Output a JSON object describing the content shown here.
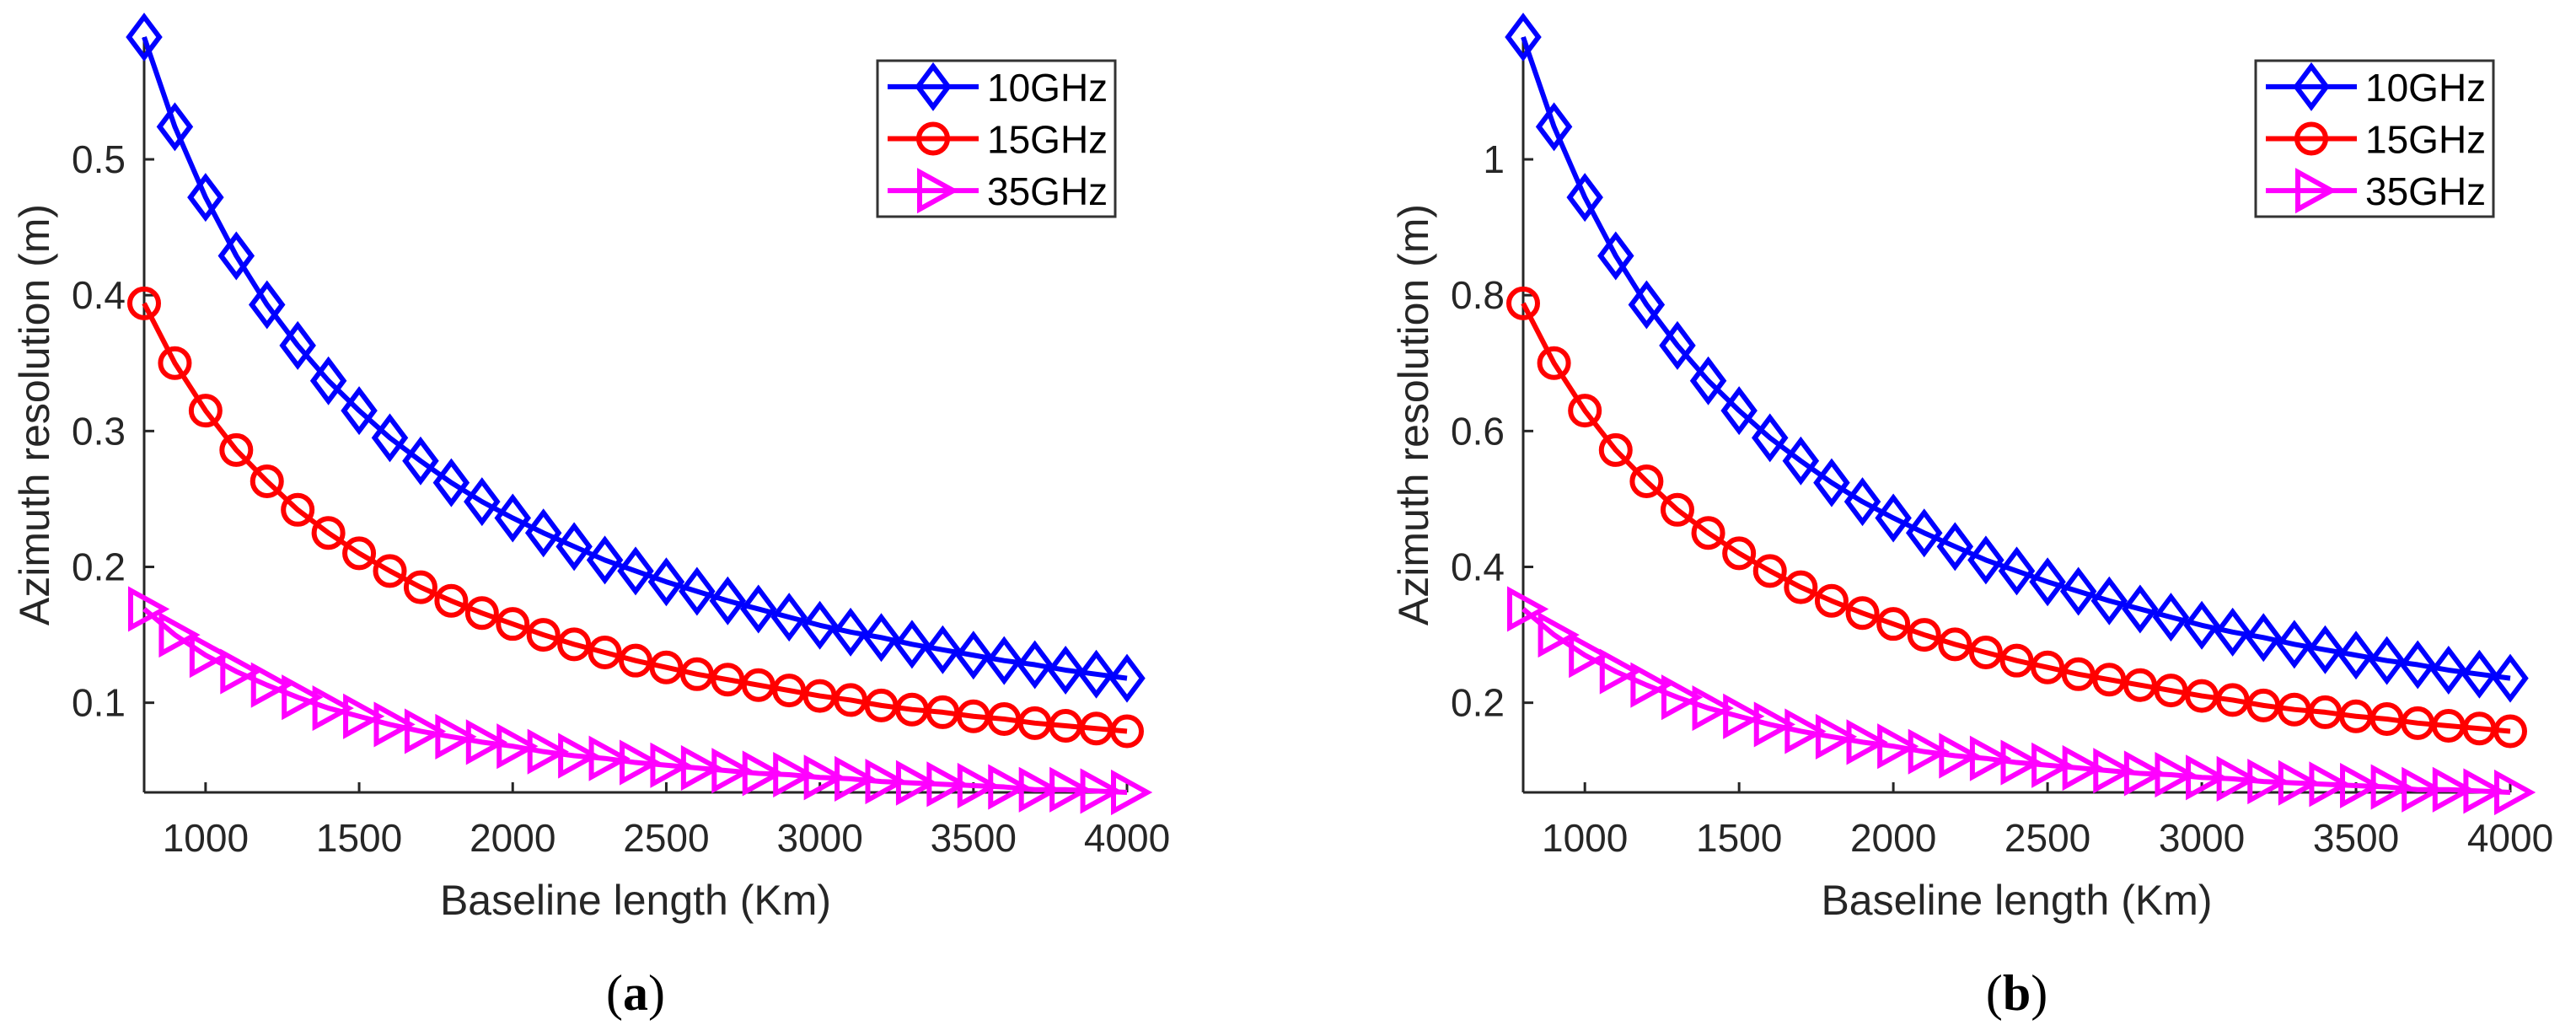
{
  "chart_data": [
    {
      "type": "line",
      "panel": "a",
      "caption_open": "(",
      "caption_letter": "a",
      "caption_close": ")",
      "xlabel": "Baseline length (Km)",
      "ylabel": "Azimuth resolution (m)",
      "xlim": [
        800,
        4000
      ],
      "ylim": [
        0.034,
        0.59
      ],
      "xticks": [
        1000,
        1500,
        2000,
        2500,
        3000,
        3500,
        4000
      ],
      "yticks": [
        0.1,
        0.2,
        0.3,
        0.4,
        0.5
      ],
      "ytick_labels": [
        "0.1",
        "0.2",
        "0.3",
        "0.4",
        "0.5"
      ],
      "grid": false,
      "legend_position": "top-right",
      "x": [
        800,
        900,
        1000,
        1100,
        1200,
        1300,
        1400,
        1500,
        1600,
        1700,
        1800,
        1900,
        2000,
        2100,
        2200,
        2300,
        2400,
        2500,
        2600,
        2700,
        2800,
        2900,
        3000,
        3100,
        3200,
        3300,
        3400,
        3500,
        3600,
        3700,
        3800,
        3900,
        4000
      ],
      "series": [
        {
          "name": "10GHz",
          "color": "#0000ff",
          "marker": "diamond",
          "values": [
            0.59,
            0.524,
            0.472,
            0.429,
            0.393,
            0.363,
            0.337,
            0.315,
            0.295,
            0.278,
            0.262,
            0.248,
            0.236,
            0.225,
            0.215,
            0.205,
            0.197,
            0.189,
            0.182,
            0.175,
            0.169,
            0.163,
            0.157,
            0.152,
            0.148,
            0.143,
            0.139,
            0.135,
            0.131,
            0.128,
            0.124,
            0.121,
            0.118
          ]
        },
        {
          "name": "15GHz",
          "color": "#ff0000",
          "marker": "circle",
          "values": [
            0.394,
            0.35,
            0.315,
            0.286,
            0.263,
            0.242,
            0.225,
            0.21,
            0.197,
            0.185,
            0.175,
            0.166,
            0.158,
            0.15,
            0.143,
            0.137,
            0.131,
            0.126,
            0.121,
            0.117,
            0.113,
            0.109,
            0.105,
            0.102,
            0.098,
            0.095,
            0.093,
            0.09,
            0.088,
            0.085,
            0.083,
            0.081,
            0.079
          ]
        },
        {
          "name": "35GHz",
          "color": "#ff00ff",
          "marker": "triangle-right",
          "values": [
            0.169,
            0.15,
            0.135,
            0.123,
            0.113,
            0.104,
            0.096,
            0.09,
            0.084,
            0.079,
            0.075,
            0.071,
            0.068,
            0.064,
            0.061,
            0.059,
            0.056,
            0.054,
            0.052,
            0.05,
            0.048,
            0.047,
            0.045,
            0.044,
            0.042,
            0.041,
            0.04,
            0.039,
            0.038,
            0.036,
            0.036,
            0.035,
            0.034
          ]
        }
      ]
    },
    {
      "type": "line",
      "panel": "b",
      "caption_open": "(",
      "caption_letter": "b",
      "caption_close": ")",
      "xlabel": "Baseline length (Km)",
      "ylabel": "Azimuth resolution (m)",
      "xlim": [
        800,
        4000
      ],
      "ylim": [
        0.068,
        1.18
      ],
      "xticks": [
        1000,
        1500,
        2000,
        2500,
        3000,
        3500,
        4000
      ],
      "yticks": [
        0.2,
        0.4,
        0.6,
        0.8,
        1.0
      ],
      "ytick_labels": [
        "0.2",
        "0.4",
        "0.6",
        "0.8",
        "1"
      ],
      "grid": false,
      "legend_position": "top-right",
      "x": [
        800,
        900,
        1000,
        1100,
        1200,
        1300,
        1400,
        1500,
        1600,
        1700,
        1800,
        1900,
        2000,
        2100,
        2200,
        2300,
        2400,
        2500,
        2600,
        2700,
        2800,
        2900,
        3000,
        3100,
        3200,
        3300,
        3400,
        3500,
        3600,
        3700,
        3800,
        3900,
        4000
      ],
      "series": [
        {
          "name": "10GHz",
          "color": "#0000ff",
          "marker": "diamond",
          "values": [
            1.18,
            1.048,
            0.944,
            0.858,
            0.786,
            0.726,
            0.674,
            0.63,
            0.59,
            0.556,
            0.524,
            0.496,
            0.472,
            0.45,
            0.43,
            0.41,
            0.394,
            0.378,
            0.364,
            0.35,
            0.338,
            0.326,
            0.314,
            0.304,
            0.296,
            0.286,
            0.278,
            0.27,
            0.262,
            0.256,
            0.248,
            0.242,
            0.236
          ]
        },
        {
          "name": "15GHz",
          "color": "#ff0000",
          "marker": "circle",
          "values": [
            0.788,
            0.7,
            0.63,
            0.572,
            0.526,
            0.484,
            0.45,
            0.42,
            0.394,
            0.37,
            0.35,
            0.332,
            0.316,
            0.3,
            0.286,
            0.274,
            0.262,
            0.252,
            0.242,
            0.234,
            0.226,
            0.218,
            0.21,
            0.204,
            0.196,
            0.19,
            0.186,
            0.18,
            0.176,
            0.17,
            0.166,
            0.162,
            0.158
          ]
        },
        {
          "name": "35GHz",
          "color": "#ff00ff",
          "marker": "triangle-right",
          "values": [
            0.338,
            0.3,
            0.27,
            0.246,
            0.226,
            0.208,
            0.192,
            0.18,
            0.168,
            0.158,
            0.15,
            0.142,
            0.136,
            0.128,
            0.122,
            0.118,
            0.112,
            0.108,
            0.104,
            0.1,
            0.096,
            0.094,
            0.09,
            0.088,
            0.084,
            0.082,
            0.08,
            0.078,
            0.076,
            0.072,
            0.072,
            0.07,
            0.068
          ]
        }
      ]
    }
  ]
}
